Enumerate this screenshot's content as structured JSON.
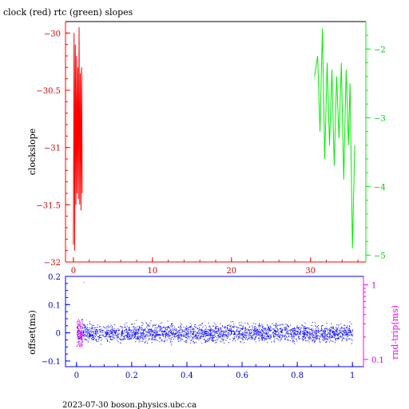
{
  "chart_data": [
    {
      "type": "line",
      "title": "clock (red) rtc (green) slopes",
      "ylabel": "clockslope",
      "x_ticks": [
        "0",
        "10",
        "20",
        "30"
      ],
      "xlim": [
        -1,
        37
      ],
      "y_left_ticks": [
        "-30",
        "-30.5",
        "-31",
        "-31.5",
        "-32"
      ],
      "ylim_left": [
        -32,
        -29.9
      ],
      "y_right_ticks": [
        "-2",
        "-3",
        "-4",
        "-5"
      ],
      "ylim_right": [
        -5.1,
        -1.6
      ],
      "colors": {
        "clock": "#ff0000",
        "rtc": "#00ee00",
        "frame": "#000000"
      },
      "series": [
        {
          "axis": "left",
          "color": "#ff0000",
          "x": [
            0.0,
            0.08,
            0.16,
            0.24,
            0.32,
            0.4,
            0.48,
            0.56,
            0.64,
            0.72,
            0.8,
            0.88,
            0.96,
            1.04,
            1.12
          ],
          "values": [
            -31.85,
            -30.0,
            -31.9,
            -30.1,
            -31.5,
            -30.2,
            -31.4,
            -30.3,
            -31.45,
            -29.95,
            -31.5,
            -30.35,
            -31.55,
            -30.3,
            -31.4
          ]
        },
        {
          "axis": "right",
          "color": "#00ee00",
          "x": [
            30.5,
            30.9,
            31.2,
            31.5,
            31.8,
            32.1,
            32.4,
            32.7,
            33.0,
            33.3,
            33.6,
            33.9,
            34.2,
            34.5,
            34.8,
            35.0,
            35.3,
            35.6
          ],
          "values": [
            -2.4,
            -2.1,
            -3.2,
            -1.7,
            -3.6,
            -2.2,
            -3.4,
            -2.3,
            -3.7,
            -2.4,
            -3.3,
            -2.2,
            -3.9,
            -2.3,
            -3.4,
            -2.5,
            -4.9,
            -3.4
          ]
        }
      ]
    },
    {
      "type": "scatter",
      "xlabel": "",
      "ylabel": "offset(ms)",
      "ylabel_right": "rnd-trip(ms)",
      "x_ticks": [
        "0",
        "0.2",
        "0.4",
        "0.6",
        "0.8",
        "1"
      ],
      "xlim": [
        -0.04,
        1.04
      ],
      "y_left_ticks": [
        "0.2",
        "0.1",
        "0",
        "-0.1"
      ],
      "ylim_left": [
        -0.12,
        0.2
      ],
      "y_right_ticks": [
        "1",
        "0.1"
      ],
      "ylim_right_log": [
        0.08,
        1.3
      ],
      "colors": {
        "offset": "#0000ff",
        "rndtrip": "#ff00ff",
        "frame": "#0000ff"
      },
      "offset_band": {
        "x": [
          0,
          1
        ],
        "center": 0.0,
        "halfwidth": 0.045
      },
      "rndtrip_cluster": {
        "x": [
          0,
          0.02
        ],
        "values": [
          0.15,
          0.35
        ]
      }
    }
  ],
  "footer": "2023-07-30  boson.physics.ubc.ca"
}
